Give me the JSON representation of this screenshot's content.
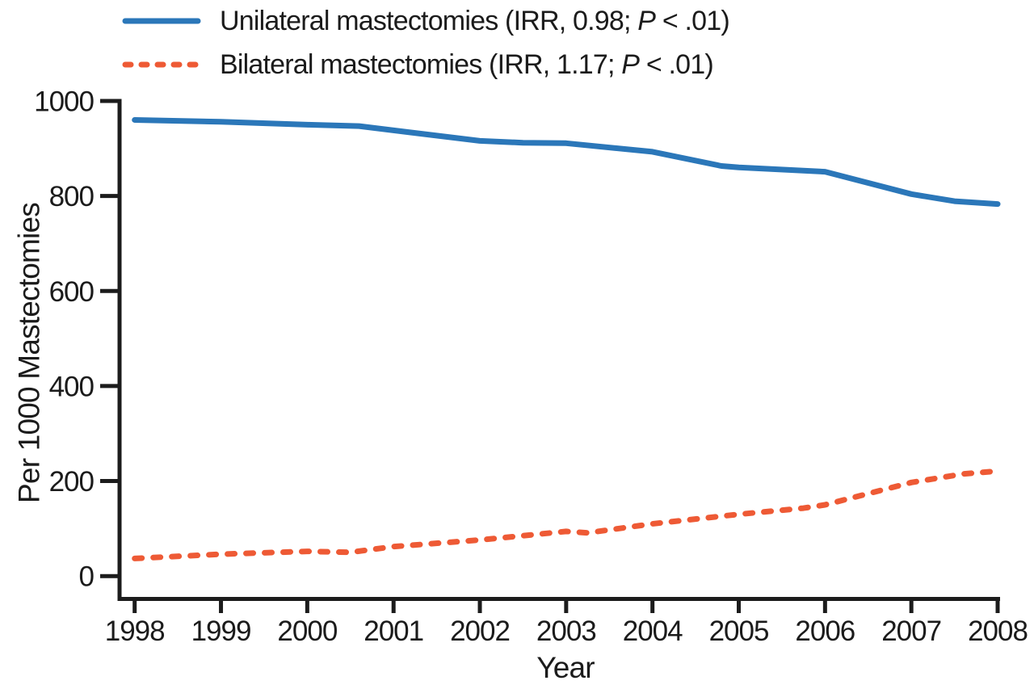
{
  "chart_data": {
    "type": "line",
    "title": "",
    "xlabel": "Year",
    "ylabel": "Per 1000 Mastectomies",
    "xlim": [
      1998,
      2008
    ],
    "ylim": [
      0,
      1000
    ],
    "x_ticks": [
      1998,
      1999,
      2000,
      2001,
      2002,
      2003,
      2004,
      2005,
      2006,
      2007,
      2008
    ],
    "y_ticks": [
      0,
      200,
      400,
      600,
      800,
      1000
    ],
    "grid": false,
    "legend_position": "top-left",
    "categories": [
      1998,
      1999,
      2000,
      2001,
      2002,
      2003,
      2004,
      2005,
      2006,
      2007,
      2008
    ],
    "series": [
      {
        "name": "Unilateral mastectomies",
        "irr": "0.98",
        "p_value": "<.01",
        "color": "#2b77b9",
        "line_style": "solid",
        "legend": {
          "before_p": "Unilateral mastectomies (IRR, 0.98; ",
          "p": "P",
          "after_p": " < .01)"
        },
        "values": [
          960,
          956,
          950,
          938,
          916,
          911,
          893,
          860,
          851,
          804,
          783
        ],
        "detail_points": [
          [
            1998,
            960
          ],
          [
            1999,
            956
          ],
          [
            2000,
            950
          ],
          [
            2000.6,
            947
          ],
          [
            2001,
            938
          ],
          [
            2002,
            916
          ],
          [
            2002.5,
            912
          ],
          [
            2003,
            911
          ],
          [
            2004,
            893
          ],
          [
            2004.8,
            863
          ],
          [
            2005,
            860
          ],
          [
            2006,
            851
          ],
          [
            2007,
            804
          ],
          [
            2007.5,
            789
          ],
          [
            2008,
            783
          ]
        ]
      },
      {
        "name": "Bilateral mastectomies",
        "irr": "1.17",
        "p_value": "<.01",
        "color": "#ee5a35",
        "line_style": "dashed",
        "legend": {
          "before_p": "Bilateral mastectomies (IRR, 1.17; ",
          "p": "P",
          "after_p": " < .01)"
        },
        "values": [
          37,
          46,
          52,
          62,
          76,
          94,
          110,
          130,
          150,
          197,
          221
        ],
        "detail_points": [
          [
            1998,
            37
          ],
          [
            1999,
            46
          ],
          [
            2000,
            52
          ],
          [
            2000.5,
            50
          ],
          [
            2001,
            62
          ],
          [
            2002,
            76
          ],
          [
            2003,
            94
          ],
          [
            2003.25,
            91
          ],
          [
            2004,
            110
          ],
          [
            2005,
            130
          ],
          [
            2005.75,
            143
          ],
          [
            2006,
            150
          ],
          [
            2007,
            197
          ],
          [
            2007.6,
            215
          ],
          [
            2008,
            221
          ]
        ]
      }
    ]
  },
  "colors": {
    "axis": "#1c1c1c",
    "text": "#1b1b1b",
    "background": "#ffffff",
    "unilateral_blue": "#2b77b9",
    "bilateral_orange": "#ee5a35"
  }
}
